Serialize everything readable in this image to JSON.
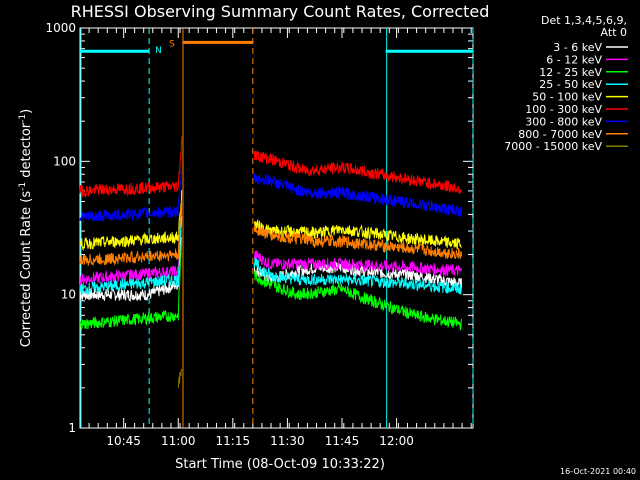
{
  "chart_data": {
    "type": "line",
    "title": "RHESSI Observing Summary Count Rates, Corrected",
    "xlabel": "Start Time (08-Oct-09 10:33:22)",
    "ylabel_parts": [
      "Corrected Count Rate (s",
      "-1",
      " detector",
      "-1",
      ")"
    ],
    "y_scale": "log",
    "ylim": [
      1,
      1000
    ],
    "y_ticks": [
      {
        "v": 1,
        "label": "1"
      },
      {
        "v": 10,
        "label": "10"
      },
      {
        "v": 100,
        "label": "100"
      },
      {
        "v": 1000,
        "label": "1000"
      }
    ],
    "x_range_min": [
      0,
      108
    ],
    "x_ticks": [
      {
        "m": 12,
        "label": "10:45"
      },
      {
        "m": 27,
        "label": "11:00"
      },
      {
        "m": 42,
        "label": "11:15"
      },
      {
        "m": 57,
        "label": "11:30"
      },
      {
        "m": 72,
        "label": "11:45"
      },
      {
        "m": 87,
        "label": "12:00"
      }
    ],
    "x_minor_step": 2.5,
    "legend_position": "top-right outside",
    "legend_header": [
      "Det 1,3,4,5,6,9,",
      "Att 0"
    ],
    "series": [
      {
        "name": "3 - 6 keV",
        "color": "#ffffff",
        "values_note": "",
        "points": [
          [
            0,
            10
          ],
          [
            19,
            10
          ],
          [
            27,
            12
          ],
          [
            28,
            40
          ],
          [
            52,
            13
          ],
          [
            60,
            15
          ],
          [
            65,
            16
          ],
          [
            72,
            16
          ],
          [
            78,
            15
          ],
          [
            92,
            14
          ],
          [
            105,
            12
          ]
        ]
      },
      {
        "name": "6 - 12 keV",
        "color": "#ff00ff",
        "points": [
          [
            0,
            13
          ],
          [
            27,
            15
          ],
          [
            28,
            45
          ],
          [
            52,
            17
          ],
          [
            60,
            17
          ],
          [
            72,
            17
          ],
          [
            92,
            16
          ],
          [
            105,
            15
          ]
        ]
      },
      {
        "name": "12 - 25 keV",
        "color": "#00ff00",
        "points": [
          [
            0,
            6
          ],
          [
            27,
            7
          ],
          [
            28,
            30
          ],
          [
            52,
            12
          ],
          [
            60,
            10
          ],
          [
            72,
            11
          ],
          [
            80,
            9
          ],
          [
            92,
            7
          ],
          [
            105,
            6
          ]
        ]
      },
      {
        "name": "25 - 50 keV",
        "color": "#00ffff",
        "points": [
          [
            0,
            11
          ],
          [
            27,
            13
          ],
          [
            28,
            50
          ],
          [
            52,
            14
          ],
          [
            60,
            13
          ],
          [
            72,
            13
          ],
          [
            92,
            12
          ],
          [
            105,
            11
          ]
        ]
      },
      {
        "name": "50 - 100 keV",
        "color": "#ffff00",
        "points": [
          [
            0,
            24
          ],
          [
            27,
            27
          ],
          [
            28,
            60
          ],
          [
            52,
            30
          ],
          [
            65,
            29
          ],
          [
            72,
            31
          ],
          [
            92,
            26
          ],
          [
            105,
            24
          ]
        ]
      },
      {
        "name": "100 - 300 keV",
        "color": "#ff0000",
        "points": [
          [
            0,
            60
          ],
          [
            27,
            65
          ],
          [
            28,
            150
          ],
          [
            52,
            105
          ],
          [
            62,
            85
          ],
          [
            72,
            90
          ],
          [
            80,
            82
          ],
          [
            92,
            72
          ],
          [
            105,
            62
          ]
        ]
      },
      {
        "name": "300 - 800 keV",
        "color": "#0000ff",
        "points": [
          [
            0,
            38
          ],
          [
            27,
            42
          ],
          [
            28,
            90
          ],
          [
            52,
            72
          ],
          [
            62,
            58
          ],
          [
            72,
            58
          ],
          [
            92,
            48
          ],
          [
            105,
            42
          ]
        ]
      },
      {
        "name": "800 - 7000 keV",
        "color": "#ff8000",
        "points": [
          [
            0,
            18
          ],
          [
            27,
            20
          ],
          [
            28,
            55
          ],
          [
            52,
            28
          ],
          [
            65,
            25
          ],
          [
            72,
            25
          ],
          [
            92,
            22
          ],
          [
            105,
            20
          ]
        ]
      },
      {
        "name": "7000 - 15000 keV",
        "color": "#808000",
        "points": [
          [
            27,
            2
          ],
          [
            28,
            3
          ]
        ]
      }
    ],
    "annotations": [
      {
        "label": "N",
        "color": "#00ffff",
        "kind": "night"
      },
      {
        "label": "S",
        "color": "#ff8000",
        "kind": "saa"
      }
    ],
    "night_intervals": [
      [
        0,
        19
      ],
      [
        84,
        108
      ]
    ],
    "saa_interval": [
      28.3,
      47.5
    ],
    "night_level": 670,
    "saa_level": 780
  },
  "timestamp": "16-Oct-2021 00:40"
}
